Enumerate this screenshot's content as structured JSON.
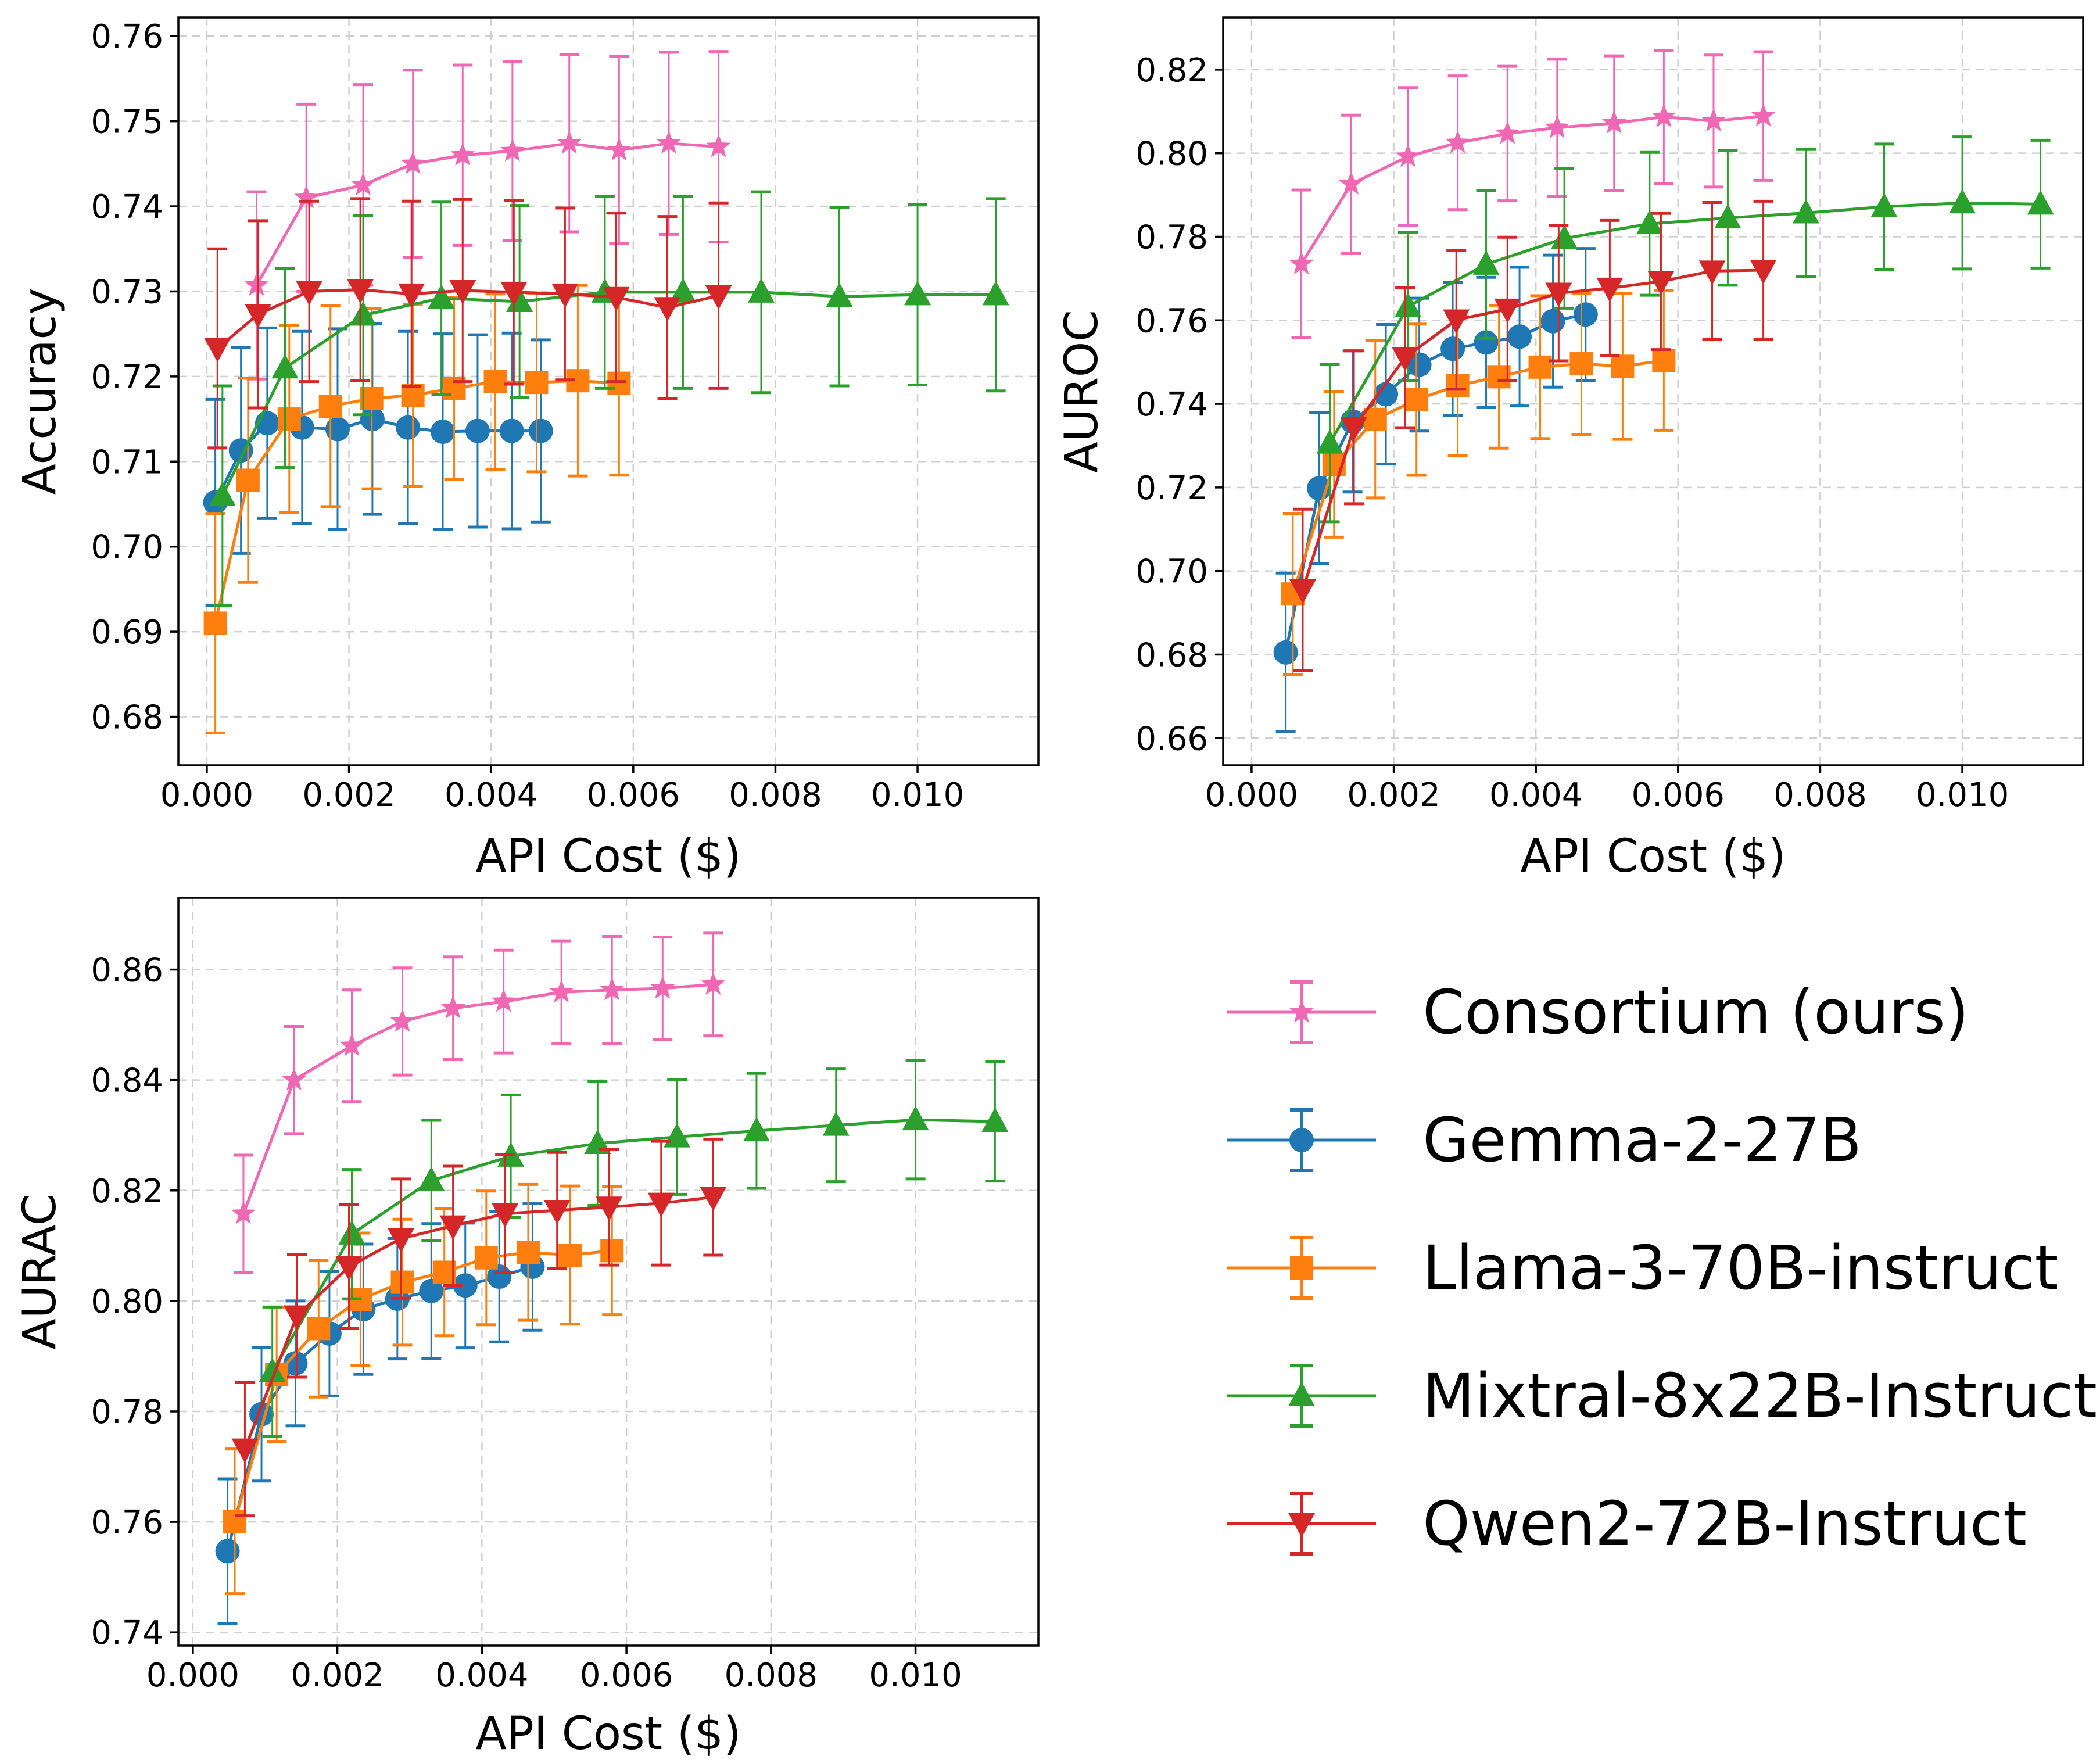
{
  "figure_title": "",
  "legend": {
    "placement": "bottom-right",
    "entries": [
      {
        "series_id": "consortium",
        "label": "Consortium (ours)"
      },
      {
        "series_id": "gemma",
        "label": "Gemma-2-27B"
      },
      {
        "series_id": "llama",
        "label": "Llama-3-70B-instruct"
      },
      {
        "series_id": "mixtral",
        "label": "Mixtral-8x22B-Instruct"
      },
      {
        "series_id": "qwen",
        "label": "Qwen2-72B-Instruct"
      }
    ]
  },
  "series_styles": {
    "consortium": {
      "color": "#f067b4",
      "marker": "star"
    },
    "gemma": {
      "color": "#1f77b4",
      "marker": "circle"
    },
    "llama": {
      "color": "#ff7f0e",
      "marker": "square"
    },
    "mixtral": {
      "color": "#2ca02c",
      "marker": "triangle-up"
    },
    "qwen": {
      "color": "#d62728",
      "marker": "triangle-down"
    }
  },
  "chart_data": [
    {
      "id": "accuracy",
      "type": "line",
      "title": "",
      "xlabel": "API Cost ($)",
      "ylabel": "Accuracy",
      "xlim": [
        -0.0004,
        0.0117
      ],
      "ylim": [
        0.6743,
        0.7622
      ],
      "xticks": [
        0.0,
        0.002,
        0.004,
        0.006,
        0.008,
        0.01
      ],
      "xtick_labels": [
        "0.000",
        "0.002",
        "0.004",
        "0.006",
        "0.008",
        "0.010"
      ],
      "yticks": [
        0.68,
        0.69,
        0.7,
        0.71,
        0.72,
        0.73,
        0.74,
        0.75,
        0.76
      ],
      "ytick_labels": [
        "0.68",
        "0.69",
        "0.70",
        "0.71",
        "0.72",
        "0.73",
        "0.74",
        "0.75",
        "0.76"
      ],
      "grid": true,
      "series": [
        {
          "id": "consortium",
          "name": "Consortium (ours)",
          "x": [
            0.0007,
            0.0014,
            0.0022,
            0.0029,
            0.0036,
            0.0043,
            0.0051,
            0.0058,
            0.0065,
            0.0072
          ],
          "y": [
            0.7307,
            0.741,
            0.7425,
            0.745,
            0.746,
            0.7465,
            0.7474,
            0.7466,
            0.7474,
            0.747
          ],
          "err": [
            0.011,
            0.011,
            0.0118,
            0.011,
            0.0106,
            0.0105,
            0.0104,
            0.011,
            0.0107,
            0.0112
          ]
        },
        {
          "id": "gemma",
          "name": "Gemma-2-27B",
          "x": [
            0.00012,
            0.00048,
            0.00085,
            0.00134,
            0.00184,
            0.00233,
            0.00283,
            0.00332,
            0.00381,
            0.00429,
            0.0047
          ],
          "y": [
            0.7052,
            0.7113,
            0.7145,
            0.714,
            0.7138,
            0.715,
            0.714,
            0.7135,
            0.7136,
            0.7136,
            0.7136
          ],
          "err": [
            0.0121,
            0.0121,
            0.0112,
            0.0113,
            0.0118,
            0.0112,
            0.0113,
            0.0115,
            0.0113,
            0.0115,
            0.0107
          ]
        },
        {
          "id": "llama",
          "name": "Llama-3-70B-instruct",
          "x": [
            0.00012,
            0.00058,
            0.00116,
            0.00174,
            0.00232,
            0.0029,
            0.00348,
            0.00406,
            0.00464,
            0.00522,
            0.0058
          ],
          "y": [
            0.691,
            0.7078,
            0.715,
            0.7165,
            0.7174,
            0.7178,
            0.7186,
            0.7194,
            0.7193,
            0.7195,
            0.7192
          ],
          "err": [
            0.0129,
            0.012,
            0.011,
            0.0118,
            0.0106,
            0.0107,
            0.0107,
            0.0103,
            0.0105,
            0.0112,
            0.0108
          ]
        },
        {
          "id": "mixtral",
          "name": "Mixtral-8x22B-Instruct",
          "x": [
            0.00022,
            0.0011,
            0.0022,
            0.0033,
            0.0044,
            0.0056,
            0.0067,
            0.0078,
            0.0089,
            0.01,
            0.0111
          ],
          "y": [
            0.706,
            0.721,
            0.7272,
            0.7292,
            0.7288,
            0.7299,
            0.7299,
            0.7299,
            0.7294,
            0.7296,
            0.7296
          ],
          "err": [
            0.0129,
            0.0117,
            0.0117,
            0.0113,
            0.0113,
            0.0113,
            0.0113,
            0.0118,
            0.0105,
            0.0106,
            0.0113
          ]
        },
        {
          "id": "qwen",
          "name": "Qwen2-72B-Instruct",
          "x": [
            0.00015,
            0.00072,
            0.00144,
            0.00216,
            0.00288,
            0.0036,
            0.00432,
            0.00504,
            0.00576,
            0.00648,
            0.0072
          ],
          "y": [
            0.7233,
            0.7273,
            0.73,
            0.7302,
            0.7297,
            0.7301,
            0.7299,
            0.7297,
            0.7293,
            0.7281,
            0.7295
          ],
          "err": [
            0.0117,
            0.011,
            0.0106,
            0.0107,
            0.0109,
            0.0107,
            0.0108,
            0.0101,
            0.0099,
            0.0107,
            0.0109
          ]
        }
      ]
    },
    {
      "id": "auroc",
      "type": "line",
      "title": "",
      "xlabel": "API Cost ($)",
      "ylabel": "AUROC",
      "xlim": [
        -0.0004,
        0.0117
      ],
      "ylim": [
        0.6535,
        0.8325
      ],
      "xticks": [
        0.0,
        0.002,
        0.004,
        0.006,
        0.008,
        0.01
      ],
      "xtick_labels": [
        "0.000",
        "0.002",
        "0.004",
        "0.006",
        "0.008",
        "0.010"
      ],
      "yticks": [
        0.66,
        0.68,
        0.7,
        0.72,
        0.74,
        0.76,
        0.78,
        0.8,
        0.82
      ],
      "ytick_labels": [
        "0.66",
        "0.68",
        "0.70",
        "0.72",
        "0.74",
        "0.76",
        "0.78",
        "0.80",
        "0.82"
      ],
      "grid": true,
      "series": [
        {
          "id": "consortium",
          "name": "Consortium (ours)",
          "x": [
            0.0007,
            0.0014,
            0.0022,
            0.0029,
            0.0036,
            0.0043,
            0.0051,
            0.0058,
            0.0065,
            0.0072
          ],
          "y": [
            0.7735,
            0.7926,
            0.7992,
            0.8025,
            0.8047,
            0.8061,
            0.8072,
            0.8087,
            0.8077,
            0.8089
          ],
          "err": [
            0.0177,
            0.0165,
            0.0165,
            0.016,
            0.0161,
            0.0164,
            0.0161,
            0.0159,
            0.0158,
            0.0154
          ]
        },
        {
          "id": "gemma",
          "name": "Gemma-2-27B",
          "x": [
            0.00048,
            0.00095,
            0.00142,
            0.00189,
            0.00236,
            0.00283,
            0.0033,
            0.00377,
            0.00424,
            0.0047
          ],
          "y": [
            0.6805,
            0.7198,
            0.7358,
            0.7423,
            0.7494,
            0.7532,
            0.7547,
            0.7561,
            0.7598,
            0.7614
          ],
          "err": [
            0.019,
            0.0181,
            0.0169,
            0.0167,
            0.0159,
            0.0159,
            0.0156,
            0.0166,
            0.0158,
            0.0158
          ]
        },
        {
          "id": "llama",
          "name": "Llama-3-70B-instruct",
          "x": [
            0.00058,
            0.00116,
            0.00174,
            0.00232,
            0.0029,
            0.00348,
            0.00406,
            0.00464,
            0.00522,
            0.0058
          ],
          "y": [
            0.6945,
            0.7255,
            0.7363,
            0.741,
            0.7444,
            0.7465,
            0.7488,
            0.7496,
            0.749,
            0.7504
          ],
          "err": [
            0.0193,
            0.0174,
            0.0188,
            0.0181,
            0.0167,
            0.0171,
            0.0171,
            0.0169,
            0.0175,
            0.0167
          ]
        },
        {
          "id": "mixtral",
          "name": "Mixtral-8x22B-Instruct",
          "x": [
            0.0011,
            0.0022,
            0.0033,
            0.0044,
            0.0056,
            0.0067,
            0.0078,
            0.0089,
            0.01,
            0.0111
          ],
          "y": [
            0.7306,
            0.7633,
            0.7734,
            0.7796,
            0.7831,
            0.7845,
            0.7857,
            0.7872,
            0.7881,
            0.7878
          ],
          "err": [
            0.0188,
            0.0177,
            0.0177,
            0.0167,
            0.0171,
            0.0161,
            0.0152,
            0.015,
            0.0158,
            0.0153
          ]
        },
        {
          "id": "qwen",
          "name": "Qwen2-72B-Instruct",
          "x": [
            0.00072,
            0.00144,
            0.00216,
            0.00288,
            0.0036,
            0.00432,
            0.00504,
            0.00576,
            0.00648,
            0.0072
          ],
          "y": [
            0.6955,
            0.7344,
            0.7511,
            0.7601,
            0.7627,
            0.7665,
            0.7677,
            0.7693,
            0.7718,
            0.772
          ],
          "err": [
            0.0193,
            0.0183,
            0.0168,
            0.0166,
            0.0172,
            0.0162,
            0.0162,
            0.0163,
            0.0164,
            0.0165
          ]
        }
      ]
    },
    {
      "id": "aurac",
      "type": "line",
      "title": "",
      "xlabel": "API Cost ($)",
      "ylabel": "AURAC",
      "xlim": [
        -0.0002,
        0.0117
      ],
      "ylim": [
        0.7376,
        0.873
      ],
      "xticks": [
        0.0,
        0.002,
        0.004,
        0.006,
        0.008,
        0.01
      ],
      "xtick_labels": [
        "0.000",
        "0.002",
        "0.004",
        "0.006",
        "0.008",
        "0.010"
      ],
      "yticks": [
        0.74,
        0.76,
        0.78,
        0.8,
        0.82,
        0.84,
        0.86
      ],
      "ytick_labels": [
        "0.74",
        "0.76",
        "0.78",
        "0.80",
        "0.82",
        "0.84",
        "0.86"
      ],
      "grid": true,
      "series": [
        {
          "id": "consortium",
          "name": "Consortium (ours)",
          "x": [
            0.0007,
            0.0014,
            0.0022,
            0.0029,
            0.0036,
            0.0043,
            0.0051,
            0.0058,
            0.0065,
            0.0072
          ],
          "y": [
            0.8158,
            0.84,
            0.8462,
            0.8506,
            0.853,
            0.8542,
            0.8559,
            0.8563,
            0.8566,
            0.8573
          ],
          "err": [
            0.0106,
            0.0097,
            0.0101,
            0.0097,
            0.0093,
            0.0093,
            0.0093,
            0.0097,
            0.0093,
            0.0093
          ]
        },
        {
          "id": "gemma",
          "name": "Gemma-2-27B",
          "x": [
            0.00048,
            0.00095,
            0.00142,
            0.00189,
            0.00236,
            0.00283,
            0.0033,
            0.00377,
            0.00424,
            0.0047
          ],
          "y": [
            0.7547,
            0.7795,
            0.7887,
            0.7941,
            0.7985,
            0.8004,
            0.8018,
            0.8028,
            0.8044,
            0.8062
          ],
          "err": [
            0.0131,
            0.0121,
            0.0113,
            0.0113,
            0.0118,
            0.0109,
            0.0122,
            0.0113,
            0.0118,
            0.0115
          ]
        },
        {
          "id": "llama",
          "name": "Llama-3-70B-instruct",
          "x": [
            0.00058,
            0.00116,
            0.00174,
            0.00232,
            0.0029,
            0.00348,
            0.00406,
            0.00464,
            0.00522,
            0.0058
          ],
          "y": [
            0.7601,
            0.7867,
            0.795,
            0.8003,
            0.8034,
            0.8052,
            0.8078,
            0.8088,
            0.8083,
            0.8091
          ],
          "err": [
            0.0131,
            0.0122,
            0.0124,
            0.012,
            0.0114,
            0.0115,
            0.0121,
            0.0123,
            0.0125,
            0.0116
          ]
        },
        {
          "id": "mixtral",
          "name": "Mixtral-8x22B-Instruct",
          "x": [
            0.0011,
            0.0022,
            0.0033,
            0.0044,
            0.0056,
            0.0067,
            0.0078,
            0.0089,
            0.01,
            0.0111
          ],
          "y": [
            0.7872,
            0.8121,
            0.8218,
            0.8262,
            0.8285,
            0.8297,
            0.8308,
            0.8318,
            0.8328,
            0.8325
          ],
          "err": [
            0.0117,
            0.0117,
            0.0109,
            0.0111,
            0.0112,
            0.0104,
            0.0104,
            0.0102,
            0.0107,
            0.0108
          ]
        },
        {
          "id": "qwen",
          "name": "Qwen2-72B-Instruct",
          "x": [
            0.00072,
            0.00144,
            0.00216,
            0.00288,
            0.0036,
            0.00432,
            0.00504,
            0.00576,
            0.00648,
            0.0072
          ],
          "y": [
            0.7732,
            0.7973,
            0.8062,
            0.8113,
            0.8136,
            0.8158,
            0.8164,
            0.817,
            0.8177,
            0.8188
          ],
          "err": [
            0.0121,
            0.0111,
            0.0112,
            0.0108,
            0.0108,
            0.0107,
            0.0105,
            0.0105,
            0.0112,
            0.0105
          ]
        }
      ]
    }
  ]
}
